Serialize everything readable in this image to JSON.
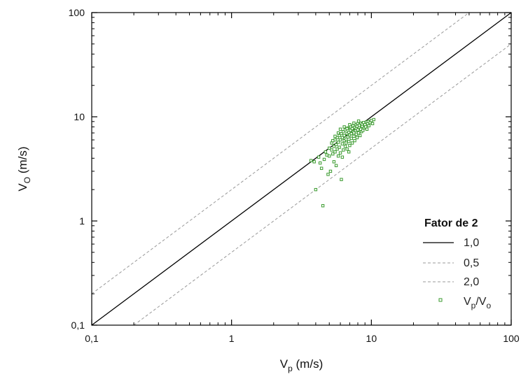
{
  "chart_data": {
    "type": "scatter",
    "x_scale": "log",
    "y_scale": "log",
    "xlim": [
      0.1,
      100
    ],
    "ylim": [
      0.1,
      100
    ],
    "grid": false,
    "legend_position": "bottom-right",
    "xlabel": {
      "main": "V",
      "sub": "p",
      "unit": " (m/s)"
    },
    "ylabel": {
      "main": "V",
      "sub": "O",
      "unit": " (m/s)"
    },
    "x_ticks": [
      {
        "value": 0.1,
        "label": "0,1"
      },
      {
        "value": 1,
        "label": "1"
      },
      {
        "value": 10,
        "label": "10"
      },
      {
        "value": 100,
        "label": "100"
      }
    ],
    "y_ticks": [
      {
        "value": 0.1,
        "label": "0,1"
      },
      {
        "value": 1,
        "label": "1"
      },
      {
        "value": 10,
        "label": "10"
      },
      {
        "value": 100,
        "label": "100"
      }
    ],
    "legend_title": "Fator de 2",
    "reference_lines": [
      {
        "name": "1,0",
        "factor": 1.0,
        "style": "solid",
        "color": "#000000"
      },
      {
        "name": "0,5",
        "factor": 2.0,
        "style": "dashed",
        "color": "#999999"
      },
      {
        "name": "2,0",
        "factor": 0.5,
        "style": "dashed",
        "color": "#999999"
      }
    ],
    "series": [
      {
        "name_main": "V",
        "name_sub1": "p",
        "name_sep": "/V",
        "name_sub2": "o",
        "marker": "open-square",
        "color": "#3a9a2e",
        "points": [
          [
            3.7,
            3.8
          ],
          [
            3.9,
            3.7
          ],
          [
            4.0,
            2.0
          ],
          [
            4.2,
            4.1
          ],
          [
            4.3,
            3.6
          ],
          [
            4.4,
            3.2
          ],
          [
            4.5,
            1.4
          ],
          [
            4.6,
            3.9
          ],
          [
            4.7,
            4.6
          ],
          [
            4.8,
            4.3
          ],
          [
            4.9,
            2.8
          ],
          [
            5.0,
            5.0
          ],
          [
            5.0,
            4.2
          ],
          [
            5.1,
            3.0
          ],
          [
            5.2,
            4.8
          ],
          [
            5.2,
            5.6
          ],
          [
            5.3,
            4.4
          ],
          [
            5.4,
            3.7
          ],
          [
            5.4,
            5.2
          ],
          [
            5.5,
            6.0
          ],
          [
            5.5,
            4.6
          ],
          [
            5.6,
            5.4
          ],
          [
            5.6,
            3.4
          ],
          [
            5.7,
            6.3
          ],
          [
            5.7,
            4.9
          ],
          [
            5.8,
            5.7
          ],
          [
            5.8,
            4.2
          ],
          [
            5.9,
            6.6
          ],
          [
            5.9,
            5.1
          ],
          [
            6.0,
            6.0
          ],
          [
            6.0,
            4.5
          ],
          [
            6.1,
            2.5
          ],
          [
            6.1,
            6.9
          ],
          [
            6.2,
            5.5
          ],
          [
            6.2,
            6.3
          ],
          [
            6.3,
            4.8
          ],
          [
            6.3,
            7.2
          ],
          [
            6.4,
            5.9
          ],
          [
            6.4,
            6.6
          ],
          [
            6.5,
            5.2
          ],
          [
            6.5,
            7.5
          ],
          [
            6.6,
            6.1
          ],
          [
            6.6,
            5.6
          ],
          [
            6.7,
            6.9
          ],
          [
            6.7,
            4.9
          ],
          [
            6.8,
            7.8
          ],
          [
            6.8,
            6.4
          ],
          [
            6.9,
            5.8
          ],
          [
            6.9,
            7.1
          ],
          [
            7.0,
            6.7
          ],
          [
            7.0,
            5.3
          ],
          [
            7.1,
            7.4
          ],
          [
            7.1,
            8.0
          ],
          [
            7.2,
            6.2
          ],
          [
            7.2,
            6.9
          ],
          [
            7.3,
            7.7
          ],
          [
            7.3,
            5.6
          ],
          [
            7.4,
            7.2
          ],
          [
            7.4,
            8.2
          ],
          [
            7.5,
            6.5
          ],
          [
            7.5,
            7.0
          ],
          [
            7.6,
            7.9
          ],
          [
            7.6,
            5.9
          ],
          [
            7.7,
            7.4
          ],
          [
            7.7,
            8.4
          ],
          [
            7.8,
            6.8
          ],
          [
            7.8,
            7.7
          ],
          [
            7.9,
            8.1
          ],
          [
            7.9,
            6.3
          ],
          [
            8.0,
            7.5
          ],
          [
            8.0,
            8.6
          ],
          [
            8.1,
            7.0
          ],
          [
            8.2,
            7.9
          ],
          [
            8.2,
            8.3
          ],
          [
            8.3,
            6.6
          ],
          [
            8.4,
            7.6
          ],
          [
            8.4,
            8.7
          ],
          [
            8.5,
            7.2
          ],
          [
            8.6,
            8.1
          ],
          [
            8.6,
            8.5
          ],
          [
            8.7,
            7.4
          ],
          [
            8.8,
            8.8
          ],
          [
            8.9,
            7.8
          ],
          [
            9.0,
            8.4
          ],
          [
            9.1,
            8.0
          ],
          [
            9.2,
            8.9
          ],
          [
            9.3,
            7.6
          ],
          [
            9.4,
            8.6
          ],
          [
            9.5,
            9.0
          ],
          [
            9.6,
            8.2
          ],
          [
            9.8,
            8.8
          ],
          [
            10.0,
            9.2
          ],
          [
            10.2,
            8.6
          ],
          [
            10.4,
            9.4
          ],
          [
            6.0,
            7.6
          ],
          [
            5.8,
            7.0
          ],
          [
            6.4,
            8.0
          ],
          [
            7.0,
            8.4
          ],
          [
            5.5,
            6.5
          ],
          [
            6.9,
            4.6
          ],
          [
            6.2,
            4.1
          ],
          [
            5.3,
            5.9
          ],
          [
            6.7,
            7.7
          ],
          [
            7.5,
            8.7
          ],
          [
            8.1,
            9.1
          ]
        ]
      }
    ]
  }
}
